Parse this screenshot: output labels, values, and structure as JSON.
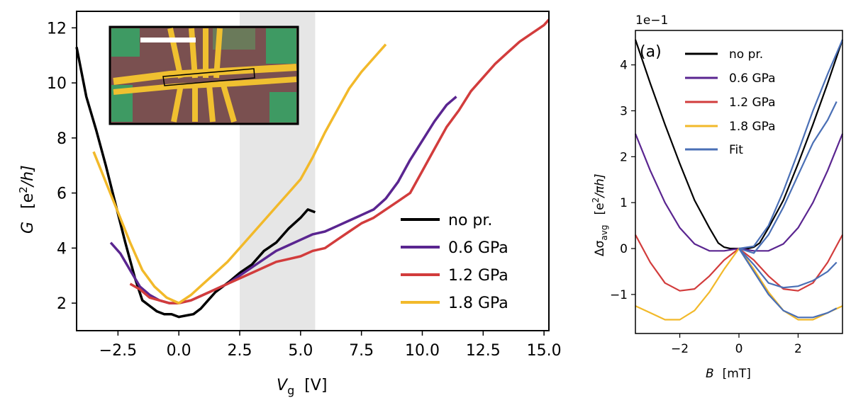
{
  "chart_data": [
    {
      "type": "line",
      "xlabel_main": "V",
      "xlabel_sub": "g",
      "xlabel_unit": "[V]",
      "ylabel_main": "G",
      "ylabel_unit_pre": "[e",
      "ylabel_unit_sup": "2",
      "ylabel_unit_post": "/h]",
      "xlim": [
        -4.2,
        15.2
      ],
      "ylim": [
        1.0,
        12.6
      ],
      "xticks": [
        -2.5,
        0.0,
        2.5,
        5.0,
        7.5,
        10.0,
        12.5,
        15.0
      ],
      "xtick_labels": [
        "−2.5",
        "0.0",
        "2.5",
        "5.0",
        "7.5",
        "10.0",
        "12.5",
        "15.0"
      ],
      "yticks": [
        2,
        4,
        6,
        8,
        10,
        12
      ],
      "ytick_labels": [
        "2",
        "4",
        "6",
        "8",
        "10",
        "12"
      ],
      "shaded_region": [
        2.5,
        5.6
      ],
      "shade_color": "#e6e6e6",
      "legend_position": "lower right",
      "inset": "optical micrograph of device (top-left)",
      "series": [
        {
          "name": "no pr.",
          "color": "#000000",
          "x": [
            -4.2,
            -3.8,
            -3.4,
            -3.0,
            -2.6,
            -2.2,
            -1.8,
            -1.5,
            -1.2,
            -0.9,
            -0.6,
            -0.3,
            0.0,
            0.3,
            0.6,
            0.9,
            1.2,
            1.5,
            1.8,
            2.1,
            2.5,
            3.0,
            3.5,
            4.0,
            4.5,
            5.0,
            5.3,
            5.6
          ],
          "y": [
            11.3,
            9.5,
            8.3,
            7.0,
            5.6,
            4.2,
            2.9,
            2.1,
            1.9,
            1.7,
            1.6,
            1.6,
            1.5,
            1.55,
            1.6,
            1.8,
            2.1,
            2.4,
            2.6,
            2.8,
            3.1,
            3.4,
            3.9,
            4.2,
            4.7,
            5.1,
            5.4,
            5.3
          ]
        },
        {
          "name": "0.6 GPa",
          "color": "#5a2590",
          "x": [
            -2.8,
            -2.4,
            -2.0,
            -1.6,
            -1.2,
            -0.8,
            -0.4,
            0.0,
            0.5,
            1.0,
            1.5,
            2.0,
            2.5,
            3.0,
            3.5,
            4.0,
            4.5,
            5.0,
            5.5,
            6.0,
            6.5,
            7.0,
            7.5,
            8.0,
            8.5,
            9.0,
            9.5,
            10.0,
            10.5,
            11.0,
            11.4
          ],
          "y": [
            4.2,
            3.8,
            3.2,
            2.6,
            2.3,
            2.1,
            2.0,
            2.0,
            2.1,
            2.3,
            2.5,
            2.7,
            3.0,
            3.3,
            3.6,
            3.9,
            4.1,
            4.3,
            4.5,
            4.6,
            4.8,
            5.0,
            5.2,
            5.4,
            5.8,
            6.4,
            7.2,
            7.9,
            8.6,
            9.2,
            9.5
          ]
        },
        {
          "name": "1.2 GPa",
          "color": "#d23c3c",
          "x": [
            -2.0,
            -1.6,
            -1.2,
            -0.8,
            -0.4,
            0.0,
            0.5,
            1.0,
            1.5,
            2.0,
            2.5,
            3.0,
            3.5,
            4.0,
            4.5,
            5.0,
            5.5,
            6.0,
            6.5,
            7.0,
            7.5,
            8.0,
            8.5,
            9.0,
            9.5,
            10.0,
            10.5,
            11.0,
            11.5,
            12.0,
            12.5,
            13.0,
            13.5,
            14.0,
            14.5,
            15.0,
            15.2
          ],
          "y": [
            2.7,
            2.5,
            2.2,
            2.1,
            2.0,
            2.0,
            2.1,
            2.3,
            2.5,
            2.7,
            2.9,
            3.1,
            3.3,
            3.5,
            3.6,
            3.7,
            3.9,
            4.0,
            4.3,
            4.6,
            4.9,
            5.1,
            5.4,
            5.7,
            6.0,
            6.8,
            7.6,
            8.4,
            9.0,
            9.7,
            10.2,
            10.7,
            11.1,
            11.5,
            11.8,
            12.1,
            12.3
          ]
        },
        {
          "name": "1.8 GPa",
          "color": "#f2b92a",
          "x": [
            -3.5,
            -3.0,
            -2.5,
            -2.0,
            -1.5,
            -1.0,
            -0.5,
            0.0,
            0.5,
            1.0,
            1.5,
            2.0,
            2.5,
            3.0,
            3.5,
            4.0,
            4.5,
            5.0,
            5.5,
            6.0,
            6.5,
            7.0,
            7.5,
            8.0,
            8.5
          ],
          "y": [
            7.5,
            6.4,
            5.3,
            4.2,
            3.2,
            2.6,
            2.2,
            2.0,
            2.3,
            2.7,
            3.1,
            3.5,
            4.0,
            4.5,
            5.0,
            5.5,
            6.0,
            6.5,
            7.3,
            8.2,
            9.0,
            9.8,
            10.4,
            10.9,
            11.4
          ]
        }
      ]
    },
    {
      "type": "line",
      "panel_label": "(a)",
      "offset_text": "1e−1",
      "xlabel_main": "B",
      "xlabel_unit": "[mT]",
      "ylabel_pre": "Δσ",
      "ylabel_sub": "avg",
      "ylabel_unit_pre": "[e",
      "ylabel_unit_sup": "2",
      "ylabel_unit_post": "/πh]",
      "xlim": [
        -3.5,
        3.5
      ],
      "ylim": [
        -1.85,
        4.75
      ],
      "xticks": [
        -2,
        0,
        2
      ],
      "xtick_labels": [
        "−2",
        "0",
        "2"
      ],
      "yticks": [
        -1,
        0,
        1,
        2,
        3,
        4
      ],
      "ytick_labels": [
        "−1",
        "0",
        "1",
        "2",
        "3",
        "4"
      ],
      "legend_position": "upper left",
      "series": [
        {
          "name": "no pr.",
          "color": "#000000",
          "x": [
            -3.5,
            -3.0,
            -2.5,
            -2.0,
            -1.5,
            -1.0,
            -0.7,
            -0.5,
            -0.3,
            0.0,
            0.3,
            0.5,
            0.7,
            1.0,
            1.5,
            2.0,
            2.5,
            3.0,
            3.5
          ],
          "y": [
            4.55,
            3.6,
            2.7,
            1.85,
            1.05,
            0.45,
            0.12,
            0.03,
            0.0,
            0.0,
            0.0,
            0.03,
            0.12,
            0.45,
            1.05,
            1.85,
            2.7,
            3.6,
            4.55
          ]
        },
        {
          "name": "0.6 GPa",
          "color": "#5a2590",
          "x": [
            -3.5,
            -3.0,
            -2.5,
            -2.0,
            -1.5,
            -1.0,
            -0.5,
            0.0,
            0.5,
            1.0,
            1.5,
            2.0,
            2.5,
            3.0,
            3.5
          ],
          "y": [
            2.5,
            1.7,
            1.0,
            0.45,
            0.1,
            -0.05,
            -0.05,
            0.0,
            -0.05,
            -0.05,
            0.1,
            0.45,
            1.0,
            1.7,
            2.5
          ]
        },
        {
          "name": "1.2 GPa",
          "color": "#d23c3c",
          "x": [
            -3.5,
            -3.0,
            -2.5,
            -2.0,
            -1.5,
            -1.0,
            -0.5,
            0.0,
            0.5,
            1.0,
            1.5,
            2.0,
            2.5,
            3.0,
            3.5
          ],
          "y": [
            0.3,
            -0.3,
            -0.75,
            -0.92,
            -0.88,
            -0.6,
            -0.25,
            0.0,
            -0.25,
            -0.6,
            -0.88,
            -0.92,
            -0.75,
            -0.3,
            0.3
          ]
        },
        {
          "name": "1.8 GPa",
          "color": "#f2b92a",
          "x": [
            -3.5,
            -3.0,
            -2.5,
            -2.0,
            -1.5,
            -1.0,
            -0.5,
            0.0,
            0.5,
            1.0,
            1.5,
            2.0,
            2.5,
            3.0,
            3.5
          ],
          "y": [
            -1.25,
            -1.4,
            -1.55,
            -1.55,
            -1.35,
            -0.95,
            -0.45,
            0.0,
            -0.45,
            -0.95,
            -1.35,
            -1.55,
            -1.55,
            -1.4,
            -1.25
          ]
        },
        {
          "name": "Fit",
          "color": "#4a6fb5",
          "x": [
            0.0,
            0.5,
            1.0,
            1.5,
            2.0,
            2.5,
            3.0,
            3.3
          ],
          "y": [
            0.0,
            -0.1,
            0.3,
            0.9,
            1.6,
            2.3,
            2.8,
            3.2
          ]
        }
      ],
      "fit_extra": [
        {
          "x": [
            0.0,
            0.5,
            1.0,
            1.5,
            2.0,
            2.5,
            3.0,
            3.5
          ],
          "y": [
            0.0,
            0.05,
            0.5,
            1.25,
            2.1,
            3.0,
            3.8,
            4.55
          ]
        },
        {
          "x": [
            0.0,
            0.5,
            1.0,
            1.5,
            2.0,
            2.5,
            3.0,
            3.3
          ],
          "y": [
            0.0,
            -0.35,
            -0.75,
            -0.85,
            -0.82,
            -0.7,
            -0.5,
            -0.3
          ]
        },
        {
          "x": [
            0.0,
            0.5,
            1.0,
            1.5,
            2.0,
            2.5,
            3.0,
            3.3
          ],
          "y": [
            0.0,
            -0.5,
            -1.0,
            -1.35,
            -1.5,
            -1.5,
            -1.4,
            -1.3
          ]
        }
      ]
    }
  ]
}
